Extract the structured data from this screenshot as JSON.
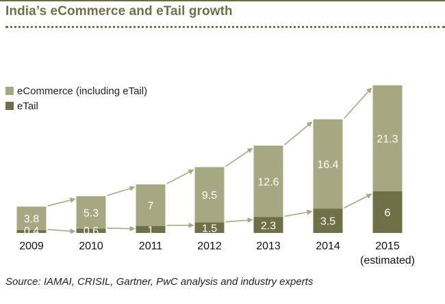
{
  "title": "India’s eCommerce and eTail growth",
  "source": "Source: IAMAI, CRISIL, Gartner, PwC analysis and industry experts",
  "colors": {
    "ecommerce": "#a6a882",
    "etail": "#6e7146",
    "arrow": "#a6a882",
    "title": "#6e7146"
  },
  "chart_data": {
    "type": "bar",
    "stacked": true,
    "categories": [
      "2009",
      "2010",
      "2011",
      "2012",
      "2013",
      "2014",
      "2015"
    ],
    "category_sublabels": [
      "",
      "",
      "",
      "",
      "",
      "",
      "(estimated)"
    ],
    "series": [
      {
        "name": "eTail",
        "values": [
          0.4,
          0.6,
          1,
          1.5,
          2.3,
          3.5,
          6
        ]
      },
      {
        "name": "eCommerce (including eTail)",
        "values": [
          3.8,
          5.3,
          7,
          9.5,
          12.6,
          16.4,
          21.3
        ]
      }
    ],
    "value_labels": {
      "eTail": [
        "0.4",
        "0.6",
        "1",
        "1.5",
        "2.3",
        "3.5",
        "6"
      ],
      "eCommerce (including eTail)": [
        "3.8",
        "5.3",
        "7",
        "9.5",
        "12.6",
        "16.4",
        "21.3"
      ]
    },
    "legend": [
      "eCommerce (including eTail)",
      "eTail"
    ],
    "legend_position": "left",
    "grid": false,
    "axes_visible": false,
    "ylim": [
      0,
      27.3
    ],
    "trend_arrows": true
  }
}
